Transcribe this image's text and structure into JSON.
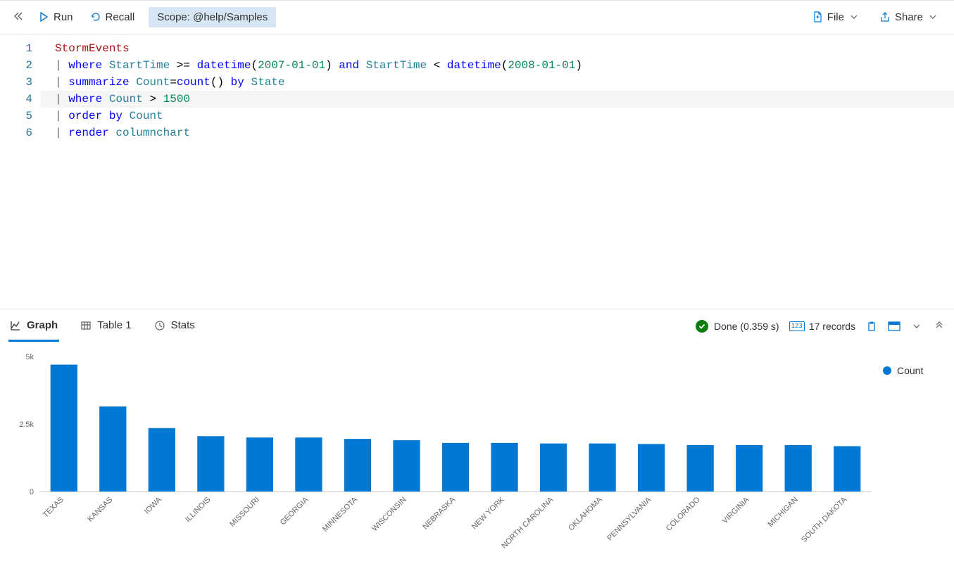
{
  "toolbar": {
    "run_label": "Run",
    "recall_label": "Recall",
    "scope_prefix": "Scope:",
    "scope_value": "@help/Samples",
    "file_label": "File",
    "share_label": "Share"
  },
  "editor": {
    "highlighted_line": 4,
    "lines": [
      {
        "n": 1,
        "tokens": [
          [
            "StormEvents",
            "ident"
          ]
        ]
      },
      {
        "n": 2,
        "tokens": [
          [
            "| ",
            "pipe"
          ],
          [
            "where ",
            "kw"
          ],
          [
            "StartTime ",
            "col"
          ],
          [
            ">= ",
            "op"
          ],
          [
            "datetime",
            "fn"
          ],
          [
            "(",
            "pn"
          ],
          [
            "2007-01-01",
            "num"
          ],
          [
            ") ",
            "pn"
          ],
          [
            "and ",
            "kw"
          ],
          [
            "StartTime ",
            "col"
          ],
          [
            "< ",
            "op"
          ],
          [
            "datetime",
            "fn"
          ],
          [
            "(",
            "pn"
          ],
          [
            "2008-01-01",
            "num"
          ],
          [
            ")",
            "pn"
          ]
        ]
      },
      {
        "n": 3,
        "tokens": [
          [
            "| ",
            "pipe"
          ],
          [
            "summarize ",
            "kw"
          ],
          [
            "Count",
            "col"
          ],
          [
            "=",
            "op"
          ],
          [
            "count",
            "fn"
          ],
          [
            "() ",
            "pn"
          ],
          [
            "by ",
            "kw"
          ],
          [
            "State",
            "col"
          ]
        ]
      },
      {
        "n": 4,
        "tokens": [
          [
            "| ",
            "pipe"
          ],
          [
            "where ",
            "kw"
          ],
          [
            "Count ",
            "col"
          ],
          [
            "> ",
            "op"
          ],
          [
            "1500",
            "num"
          ]
        ]
      },
      {
        "n": 5,
        "tokens": [
          [
            "| ",
            "pipe"
          ],
          [
            "order ",
            "kw"
          ],
          [
            "by ",
            "kw"
          ],
          [
            "Count",
            "col"
          ]
        ]
      },
      {
        "n": 6,
        "tokens": [
          [
            "| ",
            "pipe"
          ],
          [
            "render ",
            "kw"
          ],
          [
            "columnchart",
            "col"
          ]
        ]
      }
    ]
  },
  "results": {
    "tabs": {
      "graph": "Graph",
      "table": "Table 1",
      "stats": "Stats"
    },
    "active_tab": "graph",
    "status_text": "Done (0.359 s)",
    "records_text": "17 records",
    "status_color": "#107c10"
  },
  "chart": {
    "type": "bar",
    "legend_label": "Count",
    "bar_color": "#0078d4",
    "axis_color": "#c8c8c8",
    "text_color": "#666666",
    "background_color": "#ffffff",
    "ylim": [
      0,
      5000
    ],
    "yticks": [
      {
        "v": 0,
        "label": "0"
      },
      {
        "v": 2500,
        "label": "2.5k"
      },
      {
        "v": 5000,
        "label": "5k"
      }
    ],
    "label_fontsize": 11,
    "bar_width_ratio": 0.55,
    "categories": [
      "TEXAS",
      "KANSAS",
      "IOWA",
      "ILLINOIS",
      "MISSOURI",
      "GEORGIA",
      "MINNESOTA",
      "WISCONSIN",
      "NEBRASKA",
      "NEW YORK",
      "NORTH CAROLINA",
      "OKLAHOMA",
      "PENNSYLVANIA",
      "COLORADO",
      "VIRGINIA",
      "MICHIGAN",
      "SOUTH DAKOTA"
    ],
    "values": [
      4700,
      3150,
      2350,
      2050,
      2000,
      2000,
      1950,
      1900,
      1800,
      1800,
      1780,
      1780,
      1760,
      1720,
      1720,
      1720,
      1680
    ]
  }
}
